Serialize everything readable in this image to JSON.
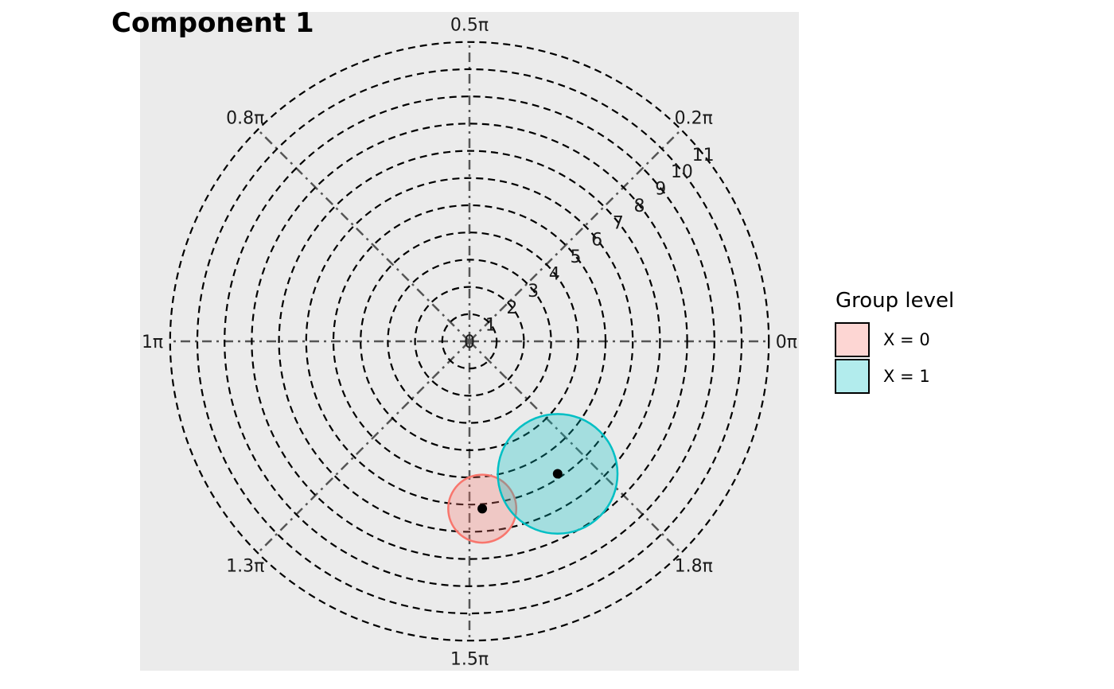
{
  "chart_data": {
    "type": "polar-scatter",
    "title": "Component 1",
    "radial_range": [
      0,
      11
    ],
    "radial_ticks": [
      "0",
      "1",
      "2",
      "3",
      "4",
      "5",
      "6",
      "7",
      "8",
      "9",
      "10",
      "11"
    ],
    "angular_ticks": [
      {
        "angle_pi": 0,
        "label": "0π"
      },
      {
        "angle_pi": 0.25,
        "label": "0.2π"
      },
      {
        "angle_pi": 0.5,
        "label": "0.5π"
      },
      {
        "angle_pi": 0.75,
        "label": "0.8π"
      },
      {
        "angle_pi": 1,
        "label": "1π"
      },
      {
        "angle_pi": 1.25,
        "label": "1.3π"
      },
      {
        "angle_pi": 1.5,
        "label": "1.5π"
      },
      {
        "angle_pi": 1.75,
        "label": "1.8π"
      }
    ],
    "legend": {
      "title": "Group level",
      "placement": "right",
      "entries": [
        {
          "label": "X = 0",
          "fill": "#f8766d",
          "stroke": "#f8766d"
        },
        {
          "label": "X = 1",
          "fill": "#00bfc4",
          "stroke": "#00bfc4"
        }
      ]
    },
    "series": [
      {
        "name": "X = 0",
        "color": "#f8766d",
        "center_x": 0.47,
        "center_y": -6.15,
        "region_radius": 1.25
      },
      {
        "name": "X = 1",
        "color": "#00bfc4",
        "center_x": 3.24,
        "center_y": -4.87,
        "region_radius": 2.2
      }
    ],
    "grid": true,
    "panel_background": "#ebebeb"
  }
}
